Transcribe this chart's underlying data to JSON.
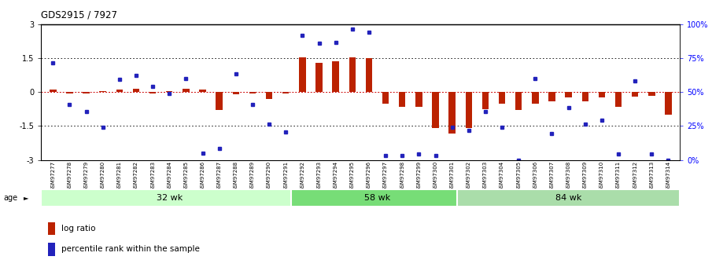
{
  "title": "GDS2915 / 7927",
  "samples": [
    "GSM97277",
    "GSM97278",
    "GSM97279",
    "GSM97280",
    "GSM97281",
    "GSM97282",
    "GSM97283",
    "GSM97284",
    "GSM97285",
    "GSM97286",
    "GSM97287",
    "GSM97288",
    "GSM97289",
    "GSM97290",
    "GSM97291",
    "GSM97292",
    "GSM97293",
    "GSM97294",
    "GSM97295",
    "GSM97296",
    "GSM97297",
    "GSM97298",
    "GSM97299",
    "GSM97300",
    "GSM97301",
    "GSM97302",
    "GSM97303",
    "GSM97304",
    "GSM97305",
    "GSM97306",
    "GSM97307",
    "GSM97308",
    "GSM97309",
    "GSM97310",
    "GSM97311",
    "GSM97312",
    "GSM97313",
    "GSM97314"
  ],
  "log_ratio": [
    0.1,
    -0.05,
    -0.05,
    0.05,
    0.1,
    0.15,
    -0.05,
    0.05,
    0.15,
    0.1,
    -0.8,
    -0.1,
    -0.05,
    -0.3,
    -0.05,
    1.55,
    1.3,
    1.35,
    1.55,
    1.5,
    -0.5,
    -0.65,
    -0.65,
    -1.6,
    -1.85,
    -1.6,
    -0.75,
    -0.5,
    -0.8,
    -0.5,
    -0.4,
    -0.25,
    -0.4,
    -0.25,
    -0.65,
    -0.2,
    -0.15,
    -1.0
  ],
  "percentile": [
    1.3,
    -0.55,
    -0.85,
    -1.55,
    0.55,
    0.75,
    0.25,
    -0.05,
    0.6,
    -2.7,
    -2.5,
    0.8,
    -0.55,
    -1.4,
    -1.75,
    2.5,
    2.15,
    2.2,
    2.8,
    2.65,
    -2.8,
    -2.8,
    -2.75,
    -2.8,
    -1.55,
    -1.7,
    -0.85,
    -1.55,
    -3.0,
    0.6,
    -1.85,
    -0.7,
    -1.4,
    -1.25,
    -2.75,
    0.5,
    -2.75,
    -3.0
  ],
  "groups": [
    {
      "label": "32 wk",
      "start": 0,
      "end": 15,
      "color": "#ccffcc"
    },
    {
      "label": "58 wk",
      "start": 15,
      "end": 25,
      "color": "#77dd77"
    },
    {
      "label": "84 wk",
      "start": 25,
      "end": 38,
      "color": "#aaddaa"
    }
  ],
  "ylim": [
    -3,
    3
  ],
  "yticks_left": [
    -3,
    -1.5,
    0,
    1.5,
    3
  ],
  "yticks_right_vals": [
    -3,
    -1.5,
    0,
    1.5,
    3
  ],
  "yticks_right_labels": [
    "0%",
    "25%",
    "50%",
    "75%",
    "100%"
  ],
  "hline_color": "#cc0000",
  "bar_color": "#bb2200",
  "dot_color": "#2222bb",
  "bg_color": "#ffffff"
}
